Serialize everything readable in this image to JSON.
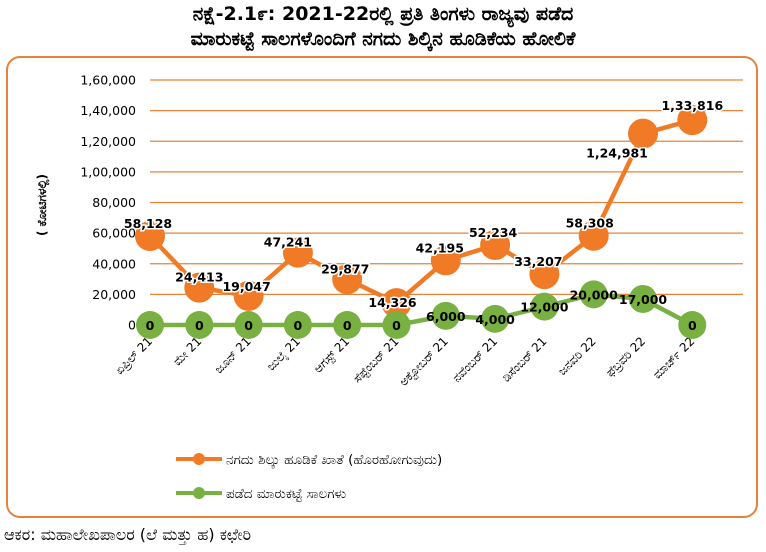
{
  "title_line1": "ನಕ್ಷೆ-2.1೯: 2021-22ರಲ್ಲಿ ಪ್ರತಿ ತಿಂಗಳು ರಾಜ್ಯವು ಪಡೆದ",
  "title_line2": "ಮಾರುಕಟ್ಟೆ ಸಾಲಗಳೊಂದಿಗೆ ನಗದು ಶಿಲ್ಕಿನ ಹೂಡಿಕೆಯ ಹೋಲಿಕೆ",
  "source": "ಆಕರ: ಮಹಾಲೇಖಪಾಲರ (ಲೆ ಮತ್ತು ಹ) ಕಛೇರಿ",
  "chart_data": {
    "type": "line",
    "ylabel": "( ಕೋಟಿಗಳಲ್ಲಿ)",
    "xlabel": "",
    "ylim": [
      0,
      160000
    ],
    "ytick_labels": [
      "0",
      "20,000",
      "40,000",
      "60,000",
      "80,000",
      "1,00,000",
      "1,20,000",
      "1,40,000",
      "1,60,000"
    ],
    "categories": [
      "ಏಪ್ರಿಲ್ 21",
      "ಮೇ 21",
      "ಜೂನ್ 21",
      "ಜುಲೈ 21",
      "ಆಗಸ್ಟ್ 21",
      "ಸೆಪ್ಟೆಂಬರ್ 21",
      "ಅಕ್ಟೋಬರ್ 21",
      "ನವೆಂಬರ್ 21",
      "ಡಿಸೆಂಬರ್ 21",
      "ಜನವರಿ 22",
      "ಫೆಬ್ರವರಿ 22",
      "ಮಾರ್ಚ್ 22"
    ],
    "grid": true,
    "legend_position": "bottom",
    "series": [
      {
        "name": "ನಗದು ಶಿಲ್ಕು ಹೂಡಿಕೆ ಖಾತೆ (ಹೊರಹೋಗುವುದು)",
        "color": "#f07a26",
        "values": [
          58128,
          24413,
          19047,
          47241,
          29877,
          14326,
          42195,
          52234,
          33207,
          58308,
          124981,
          133816
        ],
        "labels": [
          "58,128",
          "24,413",
          "19,047",
          "47,241",
          "29,877",
          "14,326",
          "42,195",
          "52,234",
          "33,207",
          "58,308",
          "1,24,981",
          "1,33,816"
        ]
      },
      {
        "name": "ಪಡೆದ ಮಾರುಕಟ್ಟೆ ಸಾಲಗಳು",
        "color": "#78b042",
        "values": [
          0,
          0,
          0,
          0,
          0,
          0,
          6000,
          4000,
          12000,
          20000,
          17000,
          0
        ],
        "labels": [
          "0",
          "0",
          "0",
          "0",
          "0",
          "0",
          "6,000",
          "4,000",
          "12,000",
          "20,000",
          "17,000",
          "0"
        ]
      }
    ]
  }
}
